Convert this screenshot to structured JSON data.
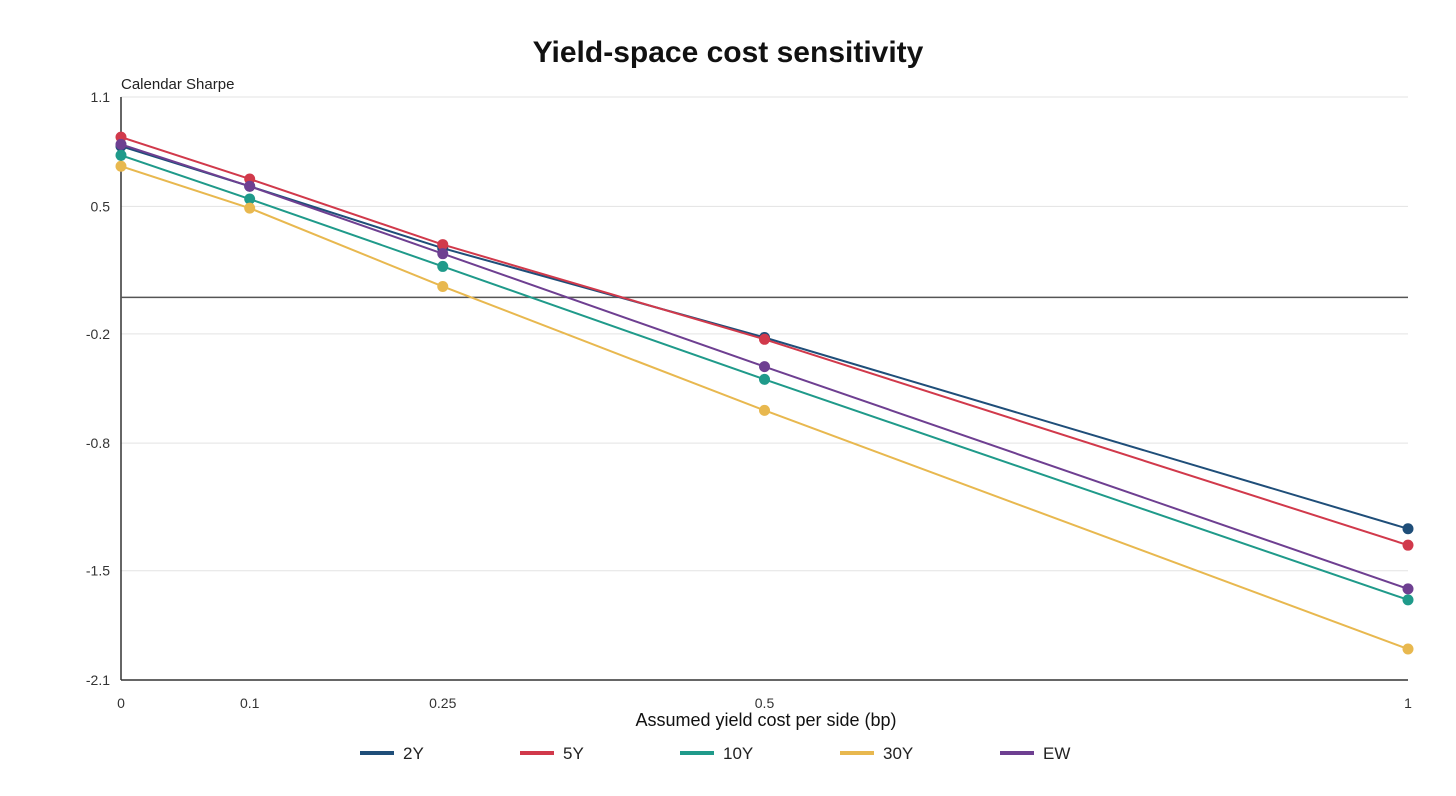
{
  "chart_data": {
    "type": "line",
    "title": "Yield-space cost sensitivity",
    "ylabel": "Calendar Sharpe",
    "xlabel": "Assumed yield cost per side (bp)",
    "x": [
      0,
      0.1,
      0.25,
      0.5,
      1
    ],
    "x_tick_labels": [
      "0",
      "0.1",
      "0.25",
      "0.5",
      "1"
    ],
    "y_ticks": [
      1.1,
      0.5,
      -0.2,
      -0.8,
      -1.5,
      -2.1
    ],
    "y_tick_labels": [
      "1.1",
      "0.5",
      "-0.2",
      "-0.8",
      "-1.5",
      "-2.1"
    ],
    "ylim": [
      -2.1,
      1.1
    ],
    "xlim": [
      0,
      1
    ],
    "zero_line": 0,
    "grid": "horizontal",
    "legend_position": "bottom",
    "series": [
      {
        "name": "2Y",
        "color": "#1f4e79",
        "values": [
          0.83,
          0.61,
          0.27,
          -0.22,
          -1.27
        ]
      },
      {
        "name": "5Y",
        "color": "#d1394b",
        "values": [
          0.88,
          0.65,
          0.29,
          -0.23,
          -1.36
        ]
      },
      {
        "name": "10Y",
        "color": "#1f9a8a",
        "values": [
          0.78,
          0.54,
          0.17,
          -0.45,
          -1.66
        ]
      },
      {
        "name": "30Y",
        "color": "#e8b84f",
        "values": [
          0.72,
          0.49,
          0.06,
          -0.62,
          -1.93
        ]
      },
      {
        "name": "EW",
        "color": "#6e3f91",
        "values": [
          0.84,
          0.61,
          0.24,
          -0.38,
          -1.6
        ]
      }
    ]
  }
}
